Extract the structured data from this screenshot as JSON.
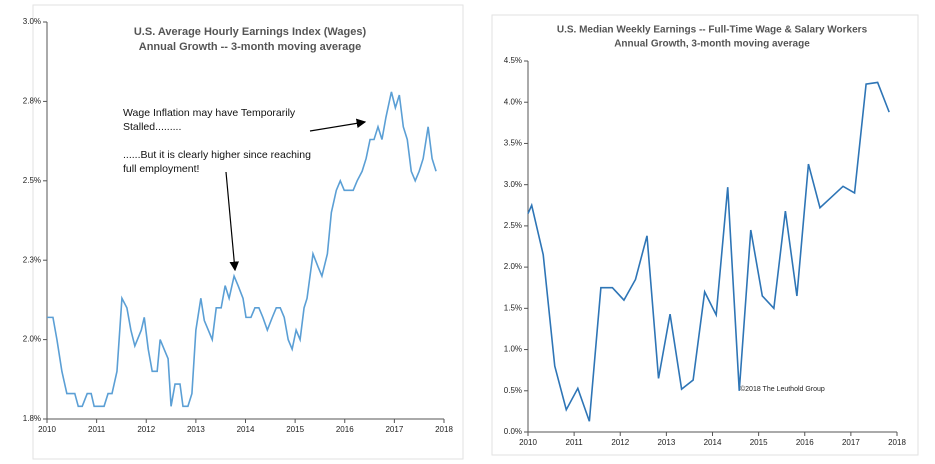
{
  "chart_data": [
    {
      "type": "line",
      "title": "U.S. Average Hourly Earnings Index (Wages)",
      "subtitle": "Annual Growth -- 3-month moving average",
      "annotations": [
        "Wage Inflation may have Temporarily Stalled.........",
        "......But it is clearly higher since reaching full employment!"
      ],
      "x": [
        2010.0,
        2010.12,
        2010.2,
        2010.3,
        2010.4,
        2010.56,
        2010.63,
        2010.71,
        2010.81,
        2010.89,
        2010.95,
        2011.15,
        2011.23,
        2011.31,
        2011.41,
        2011.51,
        2011.61,
        2011.69,
        2011.77,
        2011.9,
        2011.96,
        2012.04,
        2012.12,
        2012.22,
        2012.28,
        2012.36,
        2012.44,
        2012.5,
        2012.58,
        2012.68,
        2012.74,
        2012.84,
        2012.92,
        2013.0,
        2013.1,
        2013.17,
        2013.25,
        2013.33,
        2013.41,
        2013.51,
        2013.59,
        2013.67,
        2013.77,
        2013.85,
        2013.95,
        2014.01,
        2014.11,
        2014.19,
        2014.27,
        2014.35,
        2014.44,
        2014.54,
        2014.62,
        2014.7,
        2014.78,
        2014.86,
        2014.94,
        2015.02,
        2015.1,
        2015.18,
        2015.24,
        2015.36,
        2015.46,
        2015.54,
        2015.65,
        2015.73,
        2015.83,
        2015.91,
        2015.99,
        2016.09,
        2016.17,
        2016.25,
        2016.35,
        2016.43,
        2016.51,
        2016.59,
        2016.67,
        2016.75,
        2016.83,
        2016.94,
        2017.02,
        2017.1,
        2017.18,
        2017.26,
        2017.34,
        2017.42,
        2017.5,
        2017.58,
        2017.68,
        2017.76,
        2017.84
      ],
      "series": [
        {
          "name": "Wages",
          "color": "#5b9fd5",
          "values": [
            2.07,
            2.07,
            2.0,
            1.9,
            1.83,
            1.83,
            1.79,
            1.79,
            1.83,
            1.83,
            1.79,
            1.79,
            1.83,
            1.83,
            1.9,
            2.13,
            2.1,
            2.03,
            1.98,
            2.03,
            2.07,
            1.97,
            1.9,
            1.9,
            2.0,
            1.97,
            1.94,
            1.79,
            1.86,
            1.86,
            1.79,
            1.79,
            1.83,
            2.03,
            2.13,
            2.06,
            2.03,
            2.0,
            2.1,
            2.1,
            2.17,
            2.13,
            2.2,
            2.17,
            2.13,
            2.07,
            2.07,
            2.1,
            2.1,
            2.07,
            2.03,
            2.07,
            2.1,
            2.1,
            2.07,
            2.0,
            1.97,
            2.03,
            2.0,
            2.1,
            2.13,
            2.27,
            2.23,
            2.2,
            2.27,
            2.4,
            2.47,
            2.5,
            2.47,
            2.47,
            2.47,
            2.5,
            2.53,
            2.57,
            2.63,
            2.63,
            2.67,
            2.63,
            2.7,
            2.78,
            2.73,
            2.77,
            2.67,
            2.63,
            2.53,
            2.5,
            2.53,
            2.57,
            2.67,
            2.57,
            2.53
          ]
        }
      ],
      "xlim": [
        2010,
        2018
      ],
      "xticks": [
        2010,
        2011,
        2012,
        2013,
        2014,
        2015,
        2016,
        2017,
        2018
      ],
      "ylim": [
        1.75,
        3.0
      ],
      "yticks": [
        {
          "value": 1.75,
          "label": "1.8%"
        },
        {
          "value": 2.0,
          "label": "2.0%"
        },
        {
          "value": 2.25,
          "label": "2.3%"
        },
        {
          "value": 2.5,
          "label": "2.5%"
        },
        {
          "value": 2.75,
          "label": "2.8%"
        },
        {
          "value": 3.0,
          "label": "3.0%"
        }
      ],
      "grid": false
    },
    {
      "type": "line",
      "title": "U.S. Median Weekly Earnings -- Full-Time Wage & Salary Workers",
      "subtitle": "Annual Growth, 3-month moving average",
      "annotations": [
        "©2018 The Leuthold Group"
      ],
      "x": [
        2010.0,
        2010.08,
        2010.33,
        2010.58,
        2010.83,
        2011.08,
        2011.33,
        2011.58,
        2011.83,
        2012.08,
        2012.33,
        2012.58,
        2012.83,
        2013.08,
        2013.33,
        2013.58,
        2013.83,
        2014.08,
        2014.33,
        2014.58,
        2014.83,
        2015.08,
        2015.33,
        2015.58,
        2015.83,
        2016.08,
        2016.33,
        2016.58,
        2016.83,
        2017.08,
        2017.33,
        2017.58,
        2017.83
      ],
      "series": [
        {
          "name": "Median Weekly Earnings",
          "color": "#2e75b6",
          "values": [
            2.65,
            2.75,
            2.15,
            0.8,
            0.27,
            0.53,
            0.13,
            1.75,
            1.75,
            1.6,
            1.85,
            2.38,
            0.65,
            1.43,
            0.52,
            0.63,
            1.7,
            1.42,
            2.97,
            0.5,
            2.45,
            1.65,
            1.5,
            2.68,
            1.65,
            3.25,
            2.72,
            2.85,
            2.98,
            2.9,
            4.22,
            4.24,
            3.88
          ]
        }
      ],
      "xlim": [
        2010,
        2018
      ],
      "xticks": [
        2010,
        2011,
        2012,
        2013,
        2014,
        2015,
        2016,
        2017,
        2018
      ],
      "ylim": [
        0,
        4.5
      ],
      "yticks": [
        {
          "value": 0,
          "label": "0.0%"
        },
        {
          "value": 0.5,
          "label": "0.5%"
        },
        {
          "value": 1.0,
          "label": "1.0%"
        },
        {
          "value": 1.5,
          "label": "1.5%"
        },
        {
          "value": 2.0,
          "label": "2.0%"
        },
        {
          "value": 2.5,
          "label": "2.5%"
        },
        {
          "value": 3.0,
          "label": "3.0%"
        },
        {
          "value": 3.5,
          "label": "3.5%"
        },
        {
          "value": 4.0,
          "label": "4.0%"
        },
        {
          "value": 4.5,
          "label": "4.5%"
        }
      ],
      "grid": false
    }
  ]
}
